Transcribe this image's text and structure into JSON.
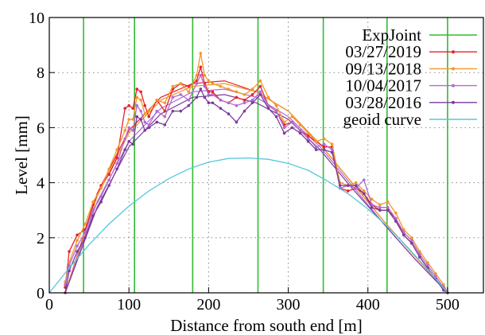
{
  "chart_data": {
    "type": "line",
    "title": "",
    "xlabel": "Distance from south end [m]",
    "ylabel": "Level [mm]",
    "xlim": [
      0,
      545
    ],
    "ylim": [
      0,
      10
    ],
    "xticks": [
      0,
      100,
      200,
      300,
      400,
      500
    ],
    "yticks": [
      0,
      2,
      4,
      6,
      8,
      10
    ],
    "grid": true,
    "legend": "top-right",
    "exp_joints": {
      "name": "ExpJoint",
      "color": "#33bb33",
      "x": [
        43,
        107,
        180,
        262,
        344,
        424,
        500
      ]
    },
    "series": [
      {
        "name": "03/27/2019",
        "color": "#e8202a",
        "x": [
          20,
          25,
          35,
          45,
          55,
          65,
          75,
          85,
          95,
          100,
          105,
          110,
          115,
          120,
          125,
          135,
          145,
          155,
          165,
          175,
          185,
          190,
          195,
          200,
          205,
          215,
          225,
          235,
          245,
          255,
          265,
          275,
          285,
          295,
          305,
          315,
          325,
          335,
          345,
          355,
          365,
          375,
          385,
          395,
          405,
          415,
          425,
          435,
          445,
          455,
          465,
          475,
          485,
          495,
          500
        ],
        "y": [
          0.2,
          1.5,
          2.1,
          2.3,
          3.2,
          3.9,
          4.3,
          4.9,
          6.7,
          6.8,
          6.7,
          7.4,
          7.3,
          6.8,
          6.4,
          7.0,
          6.6,
          7.4,
          7.6,
          7.5,
          7.7,
          8.2,
          7.6,
          7.3,
          7.3,
          7.0,
          6.9,
          7.1,
          7.0,
          7.2,
          7.5,
          6.8,
          6.6,
          6.1,
          6.2,
          5.9,
          5.7,
          5.5,
          5.3,
          5.3,
          3.8,
          3.7,
          3.8,
          3.6,
          3.2,
          3.0,
          3.0,
          2.7,
          2.1,
          1.8,
          1.3,
          0.9,
          0.5,
          0.1,
          0.0
        ]
      },
      {
        "name": "09/13/2018",
        "color": "#f0982a",
        "x": [
          20,
          25,
          35,
          45,
          55,
          65,
          75,
          85,
          95,
          100,
          105,
          110,
          115,
          120,
          125,
          135,
          145,
          155,
          165,
          175,
          185,
          190,
          195,
          200,
          205,
          215,
          225,
          235,
          245,
          255,
          265,
          275,
          285,
          295,
          305,
          315,
          325,
          335,
          345,
          355,
          365,
          375,
          385,
          395,
          405,
          415,
          425,
          435,
          445,
          455,
          465,
          475,
          485,
          495,
          500
        ],
        "y": [
          0.4,
          1.1,
          1.9,
          2.5,
          3.3,
          3.8,
          4.5,
          5.2,
          5.9,
          6.3,
          6.3,
          7.1,
          7.0,
          6.5,
          6.6,
          7.0,
          6.9,
          7.5,
          7.6,
          7.3,
          7.9,
          8.7,
          7.9,
          7.7,
          7.6,
          7.5,
          7.4,
          7.3,
          7.2,
          7.4,
          7.7,
          7.1,
          6.8,
          6.2,
          6.4,
          6.1,
          5.8,
          5.5,
          5.6,
          5.4,
          4.0,
          3.9,
          4.0,
          3.7,
          3.4,
          3.2,
          3.3,
          2.9,
          2.3,
          2.0,
          1.5,
          1.1,
          0.7,
          0.3,
          0.0
        ]
      },
      {
        "name": "10/04/2017",
        "color": "#b36ad1",
        "x": [
          20,
          25,
          35,
          45,
          55,
          65,
          75,
          85,
          95,
          100,
          105,
          110,
          115,
          120,
          125,
          135,
          145,
          155,
          165,
          175,
          185,
          190,
          195,
          200,
          205,
          215,
          225,
          235,
          245,
          255,
          265,
          275,
          285,
          295,
          305,
          315,
          325,
          335,
          345,
          355,
          365,
          375,
          385,
          395,
          405,
          415,
          425,
          435,
          445,
          455,
          465,
          475,
          485,
          495,
          500
        ],
        "y": [
          0.3,
          1.0,
          1.7,
          2.2,
          3.0,
          3.5,
          4.1,
          4.7,
          5.6,
          6.0,
          5.9,
          6.8,
          6.6,
          6.2,
          6.1,
          6.6,
          6.4,
          7.1,
          7.2,
          7.0,
          7.6,
          7.9,
          7.5,
          7.2,
          7.2,
          7.0,
          6.9,
          6.8,
          6.9,
          7.0,
          7.3,
          6.8,
          6.6,
          6.0,
          6.2,
          5.9,
          5.6,
          5.3,
          5.4,
          5.2,
          3.8,
          3.9,
          3.8,
          4.1,
          3.2,
          3.1,
          3.1,
          2.7,
          2.2,
          1.9,
          1.4,
          1.0,
          0.6,
          0.2,
          0.0
        ]
      },
      {
        "name": "03/28/2016",
        "color": "#7a3c9c",
        "x": [
          20,
          25,
          35,
          45,
          55,
          65,
          75,
          85,
          95,
          100,
          105,
          110,
          115,
          120,
          125,
          135,
          145,
          155,
          165,
          175,
          185,
          190,
          195,
          200,
          205,
          215,
          225,
          235,
          245,
          255,
          265,
          275,
          285,
          295,
          305,
          315,
          325,
          335,
          345,
          355,
          365,
          375,
          385,
          395,
          405,
          415,
          425,
          435,
          445,
          455,
          465,
          475,
          485,
          495,
          500
        ],
        "y": [
          0.0,
          0.8,
          1.5,
          2.0,
          2.8,
          3.3,
          3.9,
          4.5,
          5.2,
          5.5,
          5.4,
          6.4,
          6.3,
          5.9,
          6.0,
          6.2,
          6.1,
          6.6,
          6.6,
          6.8,
          7.1,
          7.4,
          7.1,
          6.9,
          6.9,
          6.7,
          6.5,
          6.2,
          6.6,
          6.9,
          7.2,
          6.7,
          6.4,
          5.8,
          6.0,
          5.8,
          5.5,
          5.2,
          5.2,
          5.1,
          3.9,
          3.9,
          3.9,
          3.6,
          3.1,
          3.0,
          3.0,
          2.6,
          2.1,
          1.8,
          1.3,
          0.9,
          0.5,
          0.1,
          0.0
        ]
      },
      {
        "name": "geoid curve",
        "color": "#55c8dc",
        "x": [
          0,
          25,
          50,
          75,
          100,
          125,
          150,
          175,
          200,
          225,
          250,
          275,
          300,
          325,
          350,
          375,
          400,
          425,
          450,
          475,
          500
        ],
        "y": [
          0.0,
          0.9,
          1.75,
          2.5,
          3.15,
          3.7,
          4.15,
          4.5,
          4.75,
          4.88,
          4.9,
          4.85,
          4.7,
          4.45,
          4.05,
          3.6,
          3.05,
          2.4,
          1.65,
          0.85,
          0.0
        ]
      }
    ],
    "fit_curves": [
      {
        "color": "#e8202a",
        "x": [
          20,
          60,
          100,
          140,
          180,
          220,
          260,
          300,
          340,
          380,
          420,
          460,
          500
        ],
        "y": [
          0.0,
          3.6,
          5.9,
          7.1,
          7.6,
          7.7,
          7.3,
          6.6,
          5.4,
          4.0,
          2.6,
          1.3,
          0.0
        ]
      },
      {
        "color": "#f0982a",
        "x": [
          20,
          60,
          100,
          140,
          180,
          220,
          260,
          300,
          340,
          380,
          420,
          460,
          500
        ],
        "y": [
          0.0,
          3.5,
          5.8,
          7.0,
          7.5,
          7.6,
          7.3,
          6.6,
          5.4,
          4.0,
          2.6,
          1.3,
          0.0
        ]
      },
      {
        "color": "#b36ad1",
        "x": [
          20,
          60,
          100,
          140,
          180,
          220,
          260,
          300,
          340,
          380,
          420,
          460,
          500
        ],
        "y": [
          0.0,
          3.3,
          5.5,
          6.7,
          7.3,
          7.4,
          7.1,
          6.4,
          5.3,
          3.9,
          2.5,
          1.2,
          0.0
        ]
      },
      {
        "color": "#7a3c9c",
        "x": [
          20,
          60,
          100,
          140,
          180,
          220,
          260,
          300,
          340,
          380,
          420,
          460,
          500
        ],
        "y": [
          0.0,
          3.1,
          5.3,
          6.5,
          7.1,
          7.2,
          6.9,
          6.3,
          5.2,
          3.8,
          2.5,
          1.2,
          0.0
        ]
      }
    ]
  }
}
